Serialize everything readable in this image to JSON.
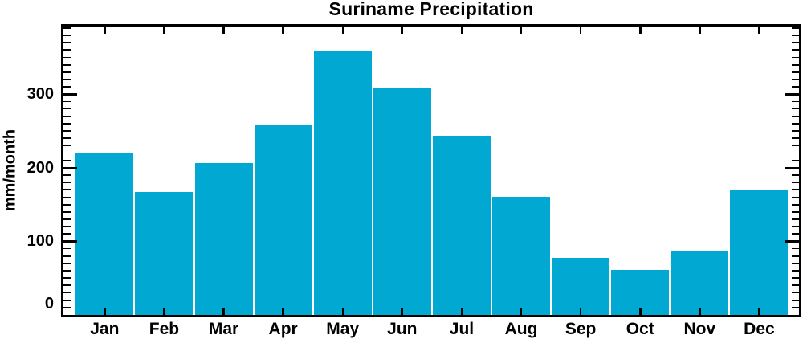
{
  "title": "Suriname Precipitation",
  "chart_data": {
    "type": "bar",
    "title": "Suriname Precipitation",
    "xlabel": "",
    "ylabel": "mm/month",
    "categories": [
      "Jan",
      "Feb",
      "Mar",
      "Apr",
      "May",
      "Jun",
      "Jul",
      "Aug",
      "Sep",
      "Oct",
      "Nov",
      "Dec"
    ],
    "values": [
      220,
      167,
      206,
      258,
      358,
      309,
      244,
      160,
      77,
      61,
      87,
      169
    ],
    "ylim": [
      0,
      392
    ],
    "yticks": [
      0,
      100,
      200,
      300
    ],
    "ytick_labels": [
      "0",
      "100",
      "200",
      "300"
    ],
    "minor_tick_step": 10,
    "grid": false,
    "legend": "none",
    "bar_color": "#00a8d2",
    "bar_gap_color": "#ffffff",
    "axis_color": "#000000",
    "text_color": "#000000",
    "background_color": "#ffffff"
  }
}
